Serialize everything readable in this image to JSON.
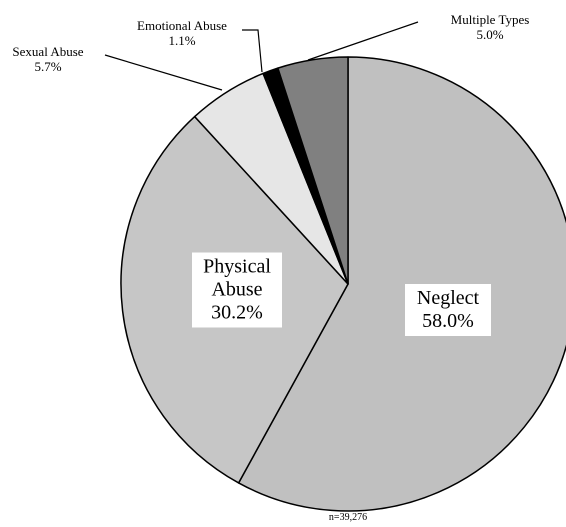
{
  "chart_data": {
    "type": "pie",
    "categories": [
      "Neglect",
      "Physical Abuse",
      "Sexual Abuse",
      "Emotional Abuse",
      "Multiple Types"
    ],
    "values": [
      58.0,
      30.2,
      5.7,
      1.1,
      5.0
    ],
    "value_labels": [
      "58.0%",
      "30.2%",
      "5.7%",
      "1.1%",
      "5.0%"
    ],
    "colors": [
      "#c0c0c0",
      "#c6c6c6",
      "#e6e6e6",
      "#000000",
      "#808080"
    ],
    "note": "n=39,276"
  }
}
